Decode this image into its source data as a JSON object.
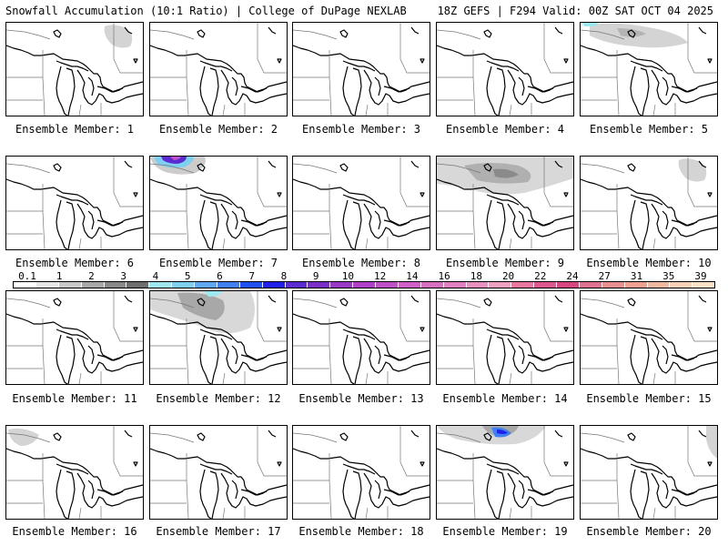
{
  "header": {
    "left": "Snowfall Accumulation (10:1 Ratio) | College of DuPage NEXLAB",
    "right": "18Z GEFS | F294 Valid: 00Z SAT OCT 04 2025"
  },
  "members": [
    {
      "label": "Ensemble Member: 1",
      "snow": "light-ne"
    },
    {
      "label": "Ensemble Member: 2",
      "snow": "none"
    },
    {
      "label": "Ensemble Member: 3",
      "snow": "none"
    },
    {
      "label": "Ensemble Member: 4",
      "snow": "none"
    },
    {
      "label": "Ensemble Member: 5",
      "snow": "light-north"
    },
    {
      "label": "Ensemble Member: 6",
      "snow": "none"
    },
    {
      "label": "Ensemble Member: 7",
      "snow": "heavy-nw"
    },
    {
      "label": "Ensemble Member: 8",
      "snow": "none"
    },
    {
      "label": "Ensemble Member: 9",
      "snow": "moderate-north"
    },
    {
      "label": "Ensemble Member: 10",
      "snow": "light-ne"
    },
    {
      "label": "Ensemble Member: 11",
      "snow": "none"
    },
    {
      "label": "Ensemble Member: 12",
      "snow": "moderate-nw"
    },
    {
      "label": "Ensemble Member: 13",
      "snow": "none"
    },
    {
      "label": "Ensemble Member: 14",
      "snow": "none"
    },
    {
      "label": "Ensemble Member: 15",
      "snow": "none"
    },
    {
      "label": "Ensemble Member: 16",
      "snow": "light-nw"
    },
    {
      "label": "Ensemble Member: 17",
      "snow": "none"
    },
    {
      "label": "Ensemble Member: 18",
      "snow": "none"
    },
    {
      "label": "Ensemble Member: 19",
      "snow": "moderate-north-blue"
    },
    {
      "label": "Ensemble Member: 20",
      "snow": "light-east"
    }
  ],
  "colorbar": {
    "ticks": [
      "0.1",
      "1",
      "2",
      "3",
      "4",
      "5",
      "6",
      "7",
      "8",
      "9",
      "10",
      "12",
      "14",
      "16",
      "18",
      "20",
      "22",
      "24",
      "27",
      "31",
      "35",
      "39"
    ],
    "colors": [
      "#ffffff",
      "#e6e6e6",
      "#c8c8c8",
      "#a8a8a8",
      "#888888",
      "#6e6e6e",
      "#9ee8f0",
      "#7fd0f0",
      "#60a8f0",
      "#4080f0",
      "#2050f0",
      "#2020e8",
      "#5a2bd0",
      "#7a30c8",
      "#9a38c8",
      "#b040c8",
      "#c050c8",
      "#d060c8",
      "#d870c0",
      "#e080c0",
      "#e890c0",
      "#f0a0c0",
      "#e878a0",
      "#e05890",
      "#d84880",
      "#e07090",
      "#e89090",
      "#f0a090",
      "#f0b8a0",
      "#f8d0b8",
      "#fce0c8"
    ]
  }
}
